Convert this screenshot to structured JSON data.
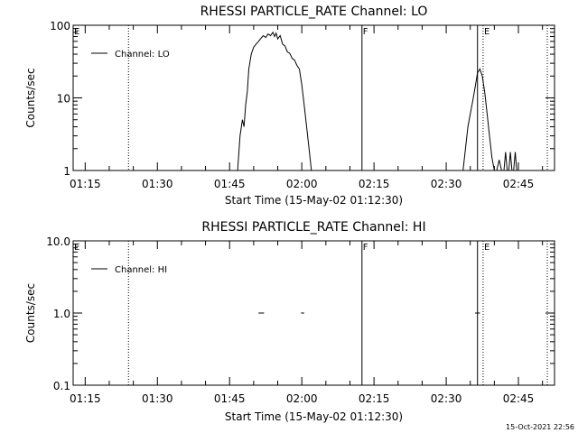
{
  "chart_data": [
    {
      "type": "line",
      "title": "RHESSI PARTICLE_RATE Channel: LO",
      "xlabel": "Start Time (15-May-02 01:12:30)",
      "ylabel": "Counts/sec",
      "y_scale": "log",
      "ylim": [
        1,
        100
      ],
      "y_ticks": [
        1,
        10,
        100
      ],
      "y_tick_labels": [
        "1",
        "10",
        "100"
      ],
      "xlim": [
        "01:12:30",
        "02:52:30"
      ],
      "x_ticks": [
        "01:15",
        "01:30",
        "01:45",
        "02:00",
        "02:15",
        "02:30",
        "02:45"
      ],
      "legend": {
        "position": "top-left",
        "entries": [
          "Channel: LO"
        ]
      },
      "markers": [
        {
          "time": "01:12:30",
          "style": "none",
          "label": "E"
        },
        {
          "time": "01:24:00",
          "style": "dotted",
          "label": ""
        },
        {
          "time": "02:12:30",
          "style": "solid",
          "label": "F"
        },
        {
          "time": "02:36:30",
          "style": "solid",
          "label": ""
        },
        {
          "time": "02:37:40",
          "style": "dotted",
          "label": "E"
        },
        {
          "time": "02:51:00",
          "style": "dotted",
          "label": ""
        }
      ],
      "series": [
        {
          "name": "Channel: LO",
          "segments": [
            [
              [
                "01:46:40",
                1
              ],
              [
                "01:47:10",
                3
              ],
              [
                "01:47:40",
                5
              ],
              [
                "01:48:00",
                4
              ],
              [
                "01:48:20",
                8
              ],
              [
                "01:48:40",
                12
              ],
              [
                "01:49:00",
                25
              ],
              [
                "01:49:30",
                40
              ],
              [
                "01:50:00",
                50
              ],
              [
                "01:50:30",
                55
              ],
              [
                "01:51:00",
                60
              ],
              [
                "01:51:30",
                66
              ],
              [
                "01:52:00",
                72
              ],
              [
                "01:52:30",
                68
              ],
              [
                "01:53:00",
                76
              ],
              [
                "01:53:30",
                72
              ],
              [
                "01:54:00",
                80
              ],
              [
                "01:54:20",
                70
              ],
              [
                "01:54:40",
                78
              ],
              [
                "01:55:00",
                65
              ],
              [
                "01:55:30",
                72
              ],
              [
                "01:56:00",
                55
              ],
              [
                "01:56:30",
                52
              ],
              [
                "01:57:00",
                43
              ],
              [
                "01:57:30",
                41
              ],
              [
                "01:58:00",
                35
              ],
              [
                "01:58:30",
                33
              ],
              [
                "01:59:00",
                28
              ],
              [
                "01:59:30",
                25
              ],
              [
                "02:00:00",
                15
              ],
              [
                "02:00:30",
                8
              ],
              [
                "02:01:00",
                4
              ],
              [
                "02:01:30",
                2
              ],
              [
                "02:02:00",
                1
              ]
            ],
            [
              [
                "02:33:30",
                1
              ],
              [
                "02:34:00",
                2
              ],
              [
                "02:34:30",
                4
              ],
              [
                "02:35:00",
                6
              ],
              [
                "02:35:30",
                9
              ],
              [
                "02:36:00",
                14
              ],
              [
                "02:36:30",
                22
              ],
              [
                "02:37:00",
                25
              ],
              [
                "02:37:30",
                20
              ],
              [
                "02:38:00",
                12
              ],
              [
                "02:38:30",
                6
              ],
              [
                "02:39:00",
                3
              ],
              [
                "02:39:30",
                1.5
              ],
              [
                "02:40:00",
                1
              ]
            ],
            [
              [
                "02:40:30",
                1
              ],
              [
                "02:41:00",
                1.4
              ],
              [
                "02:41:30",
                1
              ]
            ],
            [
              [
                "02:42:00",
                1
              ],
              [
                "02:42:20",
                1.8
              ],
              [
                "02:42:40",
                1
              ]
            ],
            [
              [
                "02:43:00",
                1
              ],
              [
                "02:43:20",
                1.8
              ],
              [
                "02:43:40",
                1
              ]
            ],
            [
              [
                "02:44:00",
                1
              ],
              [
                "02:44:20",
                1.8
              ],
              [
                "02:44:40",
                1
              ]
            ]
          ]
        }
      ]
    },
    {
      "type": "line",
      "title": "RHESSI PARTICLE_RATE Channel: HI",
      "xlabel": "Start Time (15-May-02 01:12:30)",
      "ylabel": "Counts/sec",
      "y_scale": "log",
      "ylim": [
        0.1,
        10
      ],
      "y_ticks": [
        0.1,
        1,
        10
      ],
      "y_tick_labels": [
        "0.1",
        "1.0",
        "10.0"
      ],
      "xlim": [
        "01:12:30",
        "02:52:30"
      ],
      "x_ticks": [
        "01:15",
        "01:30",
        "01:45",
        "02:00",
        "02:15",
        "02:30",
        "02:45"
      ],
      "legend": {
        "position": "top-left",
        "entries": [
          "Channel: HI"
        ]
      },
      "markers": [
        {
          "time": "01:12:30",
          "style": "none",
          "label": "E"
        },
        {
          "time": "01:24:00",
          "style": "dotted",
          "label": ""
        },
        {
          "time": "02:12:30",
          "style": "solid",
          "label": "F"
        },
        {
          "time": "02:36:30",
          "style": "solid",
          "label": ""
        },
        {
          "time": "02:37:40",
          "style": "dotted",
          "label": "E"
        },
        {
          "time": "02:51:00",
          "style": "dotted",
          "label": ""
        }
      ],
      "series": [
        {
          "name": "Channel: HI",
          "segments": [
            [
              [
                "01:51:00",
                1
              ],
              [
                "01:52:10",
                1
              ]
            ],
            [
              [
                "01:59:50",
                1
              ],
              [
                "02:00:30",
                1
              ]
            ],
            [
              [
                "02:36:00",
                1
              ],
              [
                "02:37:00",
                1
              ]
            ]
          ]
        }
      ]
    }
  ],
  "footer": {
    "timestamp": "15-Oct-2021 22:56"
  }
}
